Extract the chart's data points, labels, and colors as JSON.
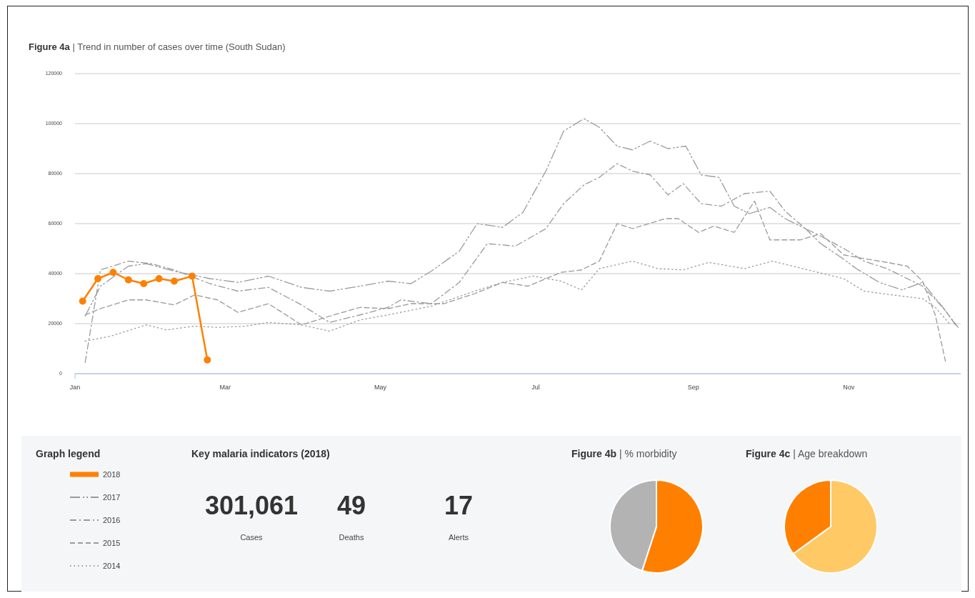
{
  "chart_data": [
    {
      "type": "line",
      "title": "Figure 4a | Trend in number of cases over time (South Sudan)",
      "legend_title": "Graph legend",
      "legend": "bottom left",
      "grid": "y",
      "xlim": [
        "--01-01",
        "--12-15"
      ],
      "xticks": [
        {
          "value": "--01-01",
          "label": "Jan"
        },
        {
          "value": "--03-01",
          "label": "Mar"
        },
        {
          "value": "--05-01",
          "label": "May"
        },
        {
          "value": "--07-01",
          "label": "Jul"
        },
        {
          "value": "--09-01",
          "label": "Sep"
        },
        {
          "value": "--11-01",
          "label": "Nov"
        }
      ],
      "ylim": [
        0,
        120000
      ],
      "yticks": [
        0,
        20000,
        40000,
        60000,
        80000,
        100000,
        120000
      ],
      "series": [
        {
          "name": "2018",
          "color": "#ff8000",
          "line_style": "solid",
          "marker": "circle",
          "x": [
            "--01-04",
            "--01-10",
            "--01-16",
            "--01-22",
            "--01-28",
            "--02-03",
            "--02-09",
            "--02-16",
            "--02-22"
          ],
          "values": [
            29000,
            38000,
            40500,
            37500,
            36000,
            38000,
            37000,
            39000,
            5500
          ]
        },
        {
          "name": "2017",
          "color": "#9a9a9a",
          "line_style": "dashdotdot",
          "marker": "none",
          "x": [
            "--01-05",
            "--01-11",
            "--01-22",
            "--01-29",
            "--02-09",
            "--02-23",
            "--03-06",
            "--03-18",
            "--03-31",
            "--04-11",
            "--04-23",
            "--05-04",
            "--05-13",
            "--05-21",
            "--06-01",
            "--06-08",
            "--06-18",
            "--06-26",
            "--07-05",
            "--07-12",
            "--07-20",
            "--07-26",
            "--08-02",
            "--08-08",
            "--08-15",
            "--08-22",
            "--08-29",
            "--09-04",
            "--09-11",
            "--09-17",
            "--09-23",
            "--10-01",
            "--10-07",
            "--10-15",
            "--10-21",
            "--10-29",
            "--11-04",
            "--11-13",
            "--11-22",
            "--11-30",
            "--12-08",
            "--12-13"
          ],
          "values": [
            23000,
            35000,
            43000,
            44000,
            41000,
            38000,
            36500,
            39000,
            34500,
            33000,
            35000,
            37000,
            36000,
            41000,
            49000,
            60000,
            58500,
            64500,
            81000,
            97000,
            102000,
            98500,
            91000,
            89500,
            93000,
            90000,
            91000,
            79500,
            78500,
            67000,
            64000,
            66500,
            62000,
            58000,
            52000,
            46500,
            42000,
            36500,
            33500,
            36500,
            26500,
            19500
          ]
        },
        {
          "name": "2016",
          "color": "#9a9a9a",
          "line_style": "dashdot",
          "marker": "none",
          "x": [
            "--01-05",
            "--01-11",
            "--01-22",
            "--01-31",
            "--02-09",
            "--02-23",
            "--03-06",
            "--03-18",
            "--03-31",
            "--04-11",
            "--04-23",
            "--05-04",
            "--05-09",
            "--05-21",
            "--06-01",
            "--06-12",
            "--06-23",
            "--07-05",
            "--07-12",
            "--07-20",
            "--07-26",
            "--08-02",
            "--08-08",
            "--08-15",
            "--08-22",
            "--08-28",
            "--09-04",
            "--09-12",
            "--09-21",
            "--10-01",
            "--10-07",
            "--10-15",
            "--10-21",
            "--10-31",
            "--11-07",
            "--11-16",
            "--11-22",
            "--11-30",
            "--12-08",
            "--12-14"
          ],
          "values": [
            4500,
            41500,
            45000,
            44000,
            41500,
            36000,
            33000,
            34500,
            27500,
            20500,
            23500,
            26500,
            29500,
            28000,
            36500,
            52000,
            51000,
            58000,
            68000,
            75500,
            78500,
            84000,
            81000,
            79500,
            71500,
            76000,
            68000,
            67000,
            72000,
            73000,
            65000,
            58000,
            55000,
            49500,
            45000,
            42000,
            39000,
            35000,
            26500,
            18500
          ]
        },
        {
          "name": "2015",
          "color": "#9a9a9a",
          "line_style": "dashed",
          "marker": "none",
          "x": [
            "--01-05",
            "--01-11",
            "--01-22",
            "--01-29",
            "--02-09",
            "--02-17",
            "--02-26",
            "--03-06",
            "--03-18",
            "--03-31",
            "--04-11",
            "--04-23",
            "--05-04",
            "--05-13",
            "--05-26",
            "--06-07",
            "--06-18",
            "--06-28",
            "--07-11",
            "--07-19",
            "--07-26",
            "--08-02",
            "--08-08",
            "--08-21",
            "--08-26",
            "--09-03",
            "--09-09",
            "--09-17",
            "--09-25",
            "--10-01",
            "--10-13",
            "--10-21",
            "--10-30",
            "--11-07",
            "--11-16",
            "--11-24",
            "--11-30",
            "--12-05",
            "--12-09"
          ],
          "values": [
            23500,
            26000,
            29500,
            29500,
            27500,
            31500,
            29500,
            24500,
            28000,
            19500,
            23000,
            26500,
            26000,
            28000,
            28000,
            32000,
            36500,
            35000,
            40500,
            41500,
            45000,
            60000,
            58000,
            62000,
            62000,
            56500,
            59000,
            56500,
            69000,
            53500,
            53500,
            56000,
            47500,
            46000,
            44500,
            43000,
            37000,
            23500,
            5000
          ]
        },
        {
          "name": "2014",
          "color": "#9a9a9a",
          "line_style": "dotted",
          "marker": "none",
          "x": [
            "--01-05",
            "--01-15",
            "--01-29",
            "--02-06",
            "--02-17",
            "--02-26",
            "--03-09",
            "--03-18",
            "--03-31",
            "--04-11",
            "--04-23",
            "--05-04",
            "--05-21",
            "--06-07",
            "--06-18",
            "--06-30",
            "--07-11",
            "--07-19",
            "--07-26",
            "--08-08",
            "--08-18",
            "--08-28",
            "--09-07",
            "--09-21",
            "--10-02",
            "--10-16",
            "--10-30",
            "--11-07",
            "--11-18",
            "--11-30",
            "--12-05",
            "--12-11"
          ],
          "values": [
            13000,
            15000,
            19500,
            17500,
            19000,
            18500,
            19000,
            20500,
            19500,
            17000,
            21500,
            23500,
            27000,
            33000,
            36500,
            39000,
            37000,
            33500,
            42000,
            45000,
            42000,
            41500,
            44500,
            42000,
            45000,
            41500,
            38000,
            33000,
            31500,
            30000,
            26500,
            19500
          ]
        }
      ]
    },
    {
      "type": "other",
      "title": "Key malaria indicators (2018)",
      "annotations": [
        "301,061",
        "Cases",
        "49",
        "Deaths",
        "17",
        "Alerts"
      ]
    },
    {
      "type": "pie",
      "title": "Figure 4b | % morbidity",
      "categories": [
        null,
        null
      ],
      "values": [
        55,
        45
      ],
      "colors": [
        "#ff8000",
        "#b3b3b3"
      ]
    },
    {
      "type": "pie",
      "title": "Figure 4c | Age breakdown",
      "categories": [
        null,
        null
      ],
      "values": [
        65,
        35
      ],
      "colors": [
        "#ffc966",
        "#ff8000"
      ]
    }
  ]
}
